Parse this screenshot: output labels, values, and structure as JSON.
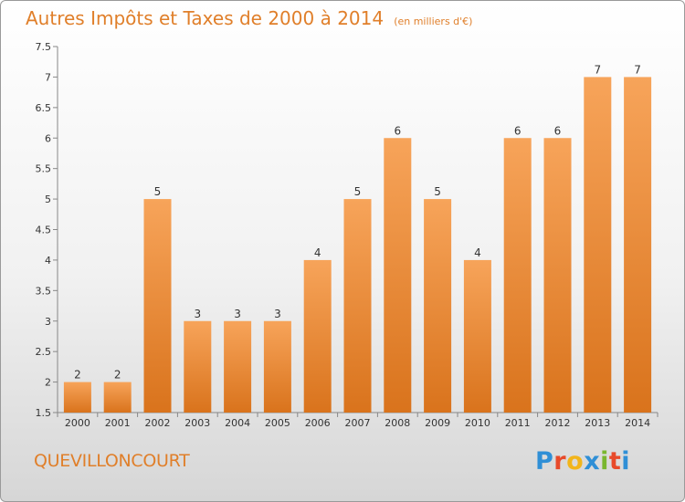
{
  "title": "Autres Impôts et Taxes de 2000 à 2014",
  "unit": "(en milliers d'€)",
  "commune": "QUEVILLONCOURT",
  "brand": {
    "letters": [
      "P",
      "r",
      "o",
      "x",
      "i",
      "t",
      "i"
    ],
    "colors": [
      "#2f8fd6",
      "#e84a2a",
      "#f2b51b",
      "#2f8fd6",
      "#7ab72f",
      "#e84a2a",
      "#2f8fd6"
    ]
  },
  "colors": {
    "bar_top": "#f7a45a",
    "bar_bottom": "#d9731c",
    "title": "#e07f2a"
  },
  "chart_data": {
    "type": "bar",
    "title": "Autres Impôts et Taxes de 2000 à 2014",
    "ylabel": "",
    "xlabel": "",
    "categories": [
      "2000",
      "2001",
      "2002",
      "2003",
      "2004",
      "2005",
      "2006",
      "2007",
      "2008",
      "2009",
      "2010",
      "2011",
      "2012",
      "2013",
      "2014"
    ],
    "values": [
      2,
      2,
      5,
      3,
      3,
      3,
      4,
      5,
      6,
      5,
      4,
      6,
      6,
      7,
      7
    ],
    "ylim": [
      1.5,
      7.5
    ],
    "yticks": [
      "1.5",
      "2",
      "2.5",
      "3",
      "3.5",
      "4",
      "4.5",
      "5",
      "5.5",
      "6",
      "6.5",
      "7",
      "7.5"
    ],
    "grid": false
  }
}
